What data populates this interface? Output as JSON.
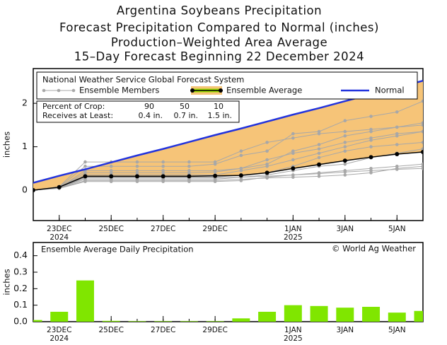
{
  "chart_data": [
    {
      "type": "line",
      "title": "Argentina Soybeans Precipitation",
      "subtitles": [
        "Forecast Precipitation Compared to Normal (inches)",
        "Production–Weighted Area Average",
        "15–Day Forecast Beginning 22 December 2024"
      ],
      "source": "National Weather Service Global Forecast System",
      "y_label": "inches",
      "x": [
        0,
        1,
        2,
        3,
        4,
        5,
        6,
        7,
        8,
        9,
        10,
        11,
        12,
        13,
        14,
        15
      ],
      "xlim": [
        0,
        15
      ],
      "xticks": [
        {
          "value": 1,
          "label": "23DEC"
        },
        {
          "value": 3,
          "label": "25DEC"
        },
        {
          "value": 5,
          "label": "27DEC"
        },
        {
          "value": 7,
          "label": "29DEC"
        },
        {
          "value": 10,
          "label": "1JAN"
        },
        {
          "value": 12,
          "label": "3JAN"
        },
        {
          "value": 14,
          "label": "5JAN"
        }
      ],
      "year_ticks": [
        {
          "value": 1,
          "label": "2024"
        },
        {
          "value": 10,
          "label": "2025"
        }
      ],
      "ylim": [
        -0.7,
        2.8
      ],
      "yticks": [
        0,
        1,
        2
      ],
      "shade_color": "#f6c478",
      "members": {
        "name": "Ensemble Members",
        "color": "#a8a8a8",
        "series": [
          [
            0,
            0.08,
            0.65,
            0.65,
            0.65,
            0.65,
            0.65,
            0.65,
            0.9,
            1.1,
            1.2,
            1.3,
            1.35,
            1.4,
            1.45,
            1.5
          ],
          [
            0,
            0.07,
            0.55,
            0.55,
            0.55,
            0.55,
            0.55,
            0.6,
            0.8,
            0.9,
            1.3,
            1.35,
            1.6,
            1.7,
            1.8,
            2.05
          ],
          [
            0,
            0.06,
            0.4,
            0.4,
            0.4,
            0.4,
            0.4,
            0.42,
            0.5,
            0.6,
            0.9,
            1.05,
            1.25,
            1.35,
            1.45,
            1.55
          ],
          [
            0,
            0.05,
            0.3,
            0.3,
            0.3,
            0.3,
            0.3,
            0.3,
            0.35,
            0.4,
            0.55,
            0.75,
            0.9,
            1.0,
            1.05,
            1.1
          ],
          [
            0,
            0.06,
            0.25,
            0.25,
            0.25,
            0.25,
            0.25,
            0.25,
            0.3,
            0.35,
            0.45,
            0.55,
            0.6,
            0.75,
            0.85,
            0.95
          ],
          [
            0,
            0.04,
            0.2,
            0.2,
            0.2,
            0.2,
            0.2,
            0.2,
            0.22,
            0.3,
            0.35,
            0.4,
            0.45,
            0.5,
            0.55,
            0.6
          ],
          [
            0,
            0.07,
            0.35,
            0.35,
            0.35,
            0.35,
            0.35,
            0.35,
            0.45,
            0.55,
            0.7,
            0.85,
            1.0,
            1.15,
            1.25,
            1.35
          ],
          [
            0,
            0.05,
            0.28,
            0.28,
            0.28,
            0.28,
            0.28,
            0.28,
            0.3,
            0.32,
            0.35,
            0.38,
            0.42,
            0.45,
            0.48,
            0.5
          ],
          [
            0,
            0.06,
            0.45,
            0.45,
            0.45,
            0.45,
            0.45,
            0.45,
            0.5,
            0.7,
            0.85,
            0.95,
            1.1,
            1.2,
            1.3,
            1.35
          ],
          [
            0,
            0.05,
            0.22,
            0.22,
            0.22,
            0.22,
            0.22,
            0.22,
            0.25,
            0.28,
            0.3,
            0.32,
            0.35,
            0.4,
            0.5,
            0.55
          ]
        ]
      },
      "series": [
        {
          "name": "Ensemble Average",
          "color": "#000000",
          "values": [
            0,
            0.07,
            0.32,
            0.32,
            0.32,
            0.32,
            0.32,
            0.33,
            0.34,
            0.4,
            0.5,
            0.59,
            0.68,
            0.76,
            0.83,
            0.88
          ]
        },
        {
          "name": "Normal",
          "color": "#2233dd",
          "values": [
            0.17,
            0.33,
            0.48,
            0.64,
            0.8,
            0.95,
            1.11,
            1.27,
            1.42,
            1.58,
            1.74,
            1.89,
            2.05,
            2.21,
            2.36,
            2.52
          ]
        }
      ],
      "crop_table": {
        "rows": [
          [
            "Percent of Crop:",
            "90",
            "50",
            "10"
          ],
          [
            "Receives at Least:",
            "0.4 in.",
            "0.7 in.",
            "1.5 in."
          ]
        ]
      }
    },
    {
      "type": "bar",
      "title": "Ensemble Average Daily Precipitation",
      "credit": "© World Ag Weather",
      "y_label": "inches",
      "x": [
        0,
        1,
        2,
        3,
        4,
        5,
        6,
        7,
        8,
        9,
        10,
        11,
        12,
        13,
        14,
        15
      ],
      "values": [
        0.01,
        0.06,
        0.25,
        0.005,
        0.003,
        0.003,
        0.003,
        0.003,
        0.02,
        0.06,
        0.1,
        0.095,
        0.085,
        0.09,
        0.055,
        0.065
      ],
      "color": "#80e600",
      "xlim": [
        0,
        15
      ],
      "xticks": [
        {
          "value": 1,
          "label": "23DEC"
        },
        {
          "value": 3,
          "label": "25DEC"
        },
        {
          "value": 5,
          "label": "27DEC"
        },
        {
          "value": 7,
          "label": "29DEC"
        },
        {
          "value": 10,
          "label": "1JAN"
        },
        {
          "value": 12,
          "label": "3JAN"
        },
        {
          "value": 14,
          "label": "5JAN"
        }
      ],
      "year_ticks": [
        {
          "value": 1,
          "label": "2024"
        },
        {
          "value": 10,
          "label": "2025"
        }
      ],
      "ylim": [
        0,
        0.48
      ],
      "yticks": [
        {
          "value": 0,
          "label": "0.0"
        },
        0.1,
        0.2,
        0.3,
        0.4
      ]
    }
  ]
}
